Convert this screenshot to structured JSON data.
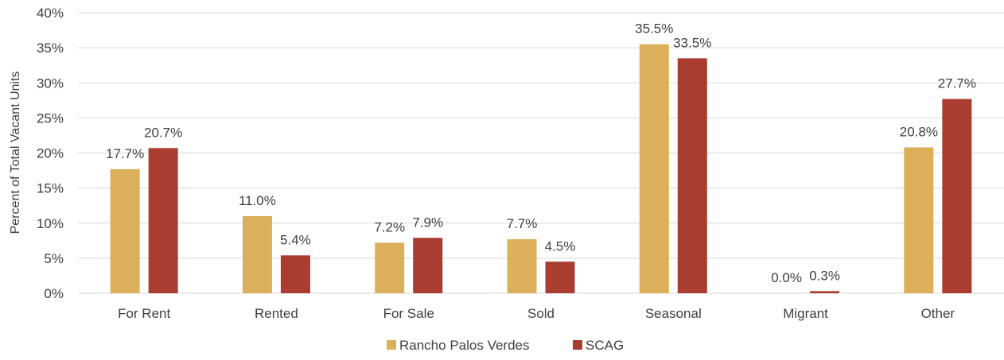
{
  "chart_data": {
    "type": "bar",
    "title": "",
    "ylabel": "Percent of Total Vacant Units",
    "xlabel": "",
    "ylim": [
      0,
      40
    ],
    "ytick_step": 5,
    "ytick_labels": [
      "0%",
      "5%",
      "10%",
      "15%",
      "20%",
      "25%",
      "30%",
      "35%",
      "40%"
    ],
    "grid": true,
    "legend_position": "bottom",
    "categories": [
      "For Rent",
      "Rented",
      "For Sale",
      "Sold",
      "Seasonal",
      "Migrant",
      "Other"
    ],
    "series": [
      {
        "name": "Rancho Palos Verdes",
        "color": "#DCB05A",
        "values": [
          17.7,
          11.0,
          7.2,
          7.7,
          35.5,
          0.0,
          20.8
        ],
        "labels": [
          "17.7%",
          "11.0%",
          "7.2%",
          "7.7%",
          "35.5%",
          "0.0%",
          "20.8%"
        ]
      },
      {
        "name": "SCAG",
        "color": "#A93D30",
        "values": [
          20.7,
          5.4,
          7.9,
          4.5,
          33.5,
          0.3,
          27.7
        ],
        "labels": [
          "20.7%",
          "5.4%",
          "7.9%",
          "4.5%",
          "33.5%",
          "0.3%",
          "27.7%"
        ]
      }
    ]
  }
}
